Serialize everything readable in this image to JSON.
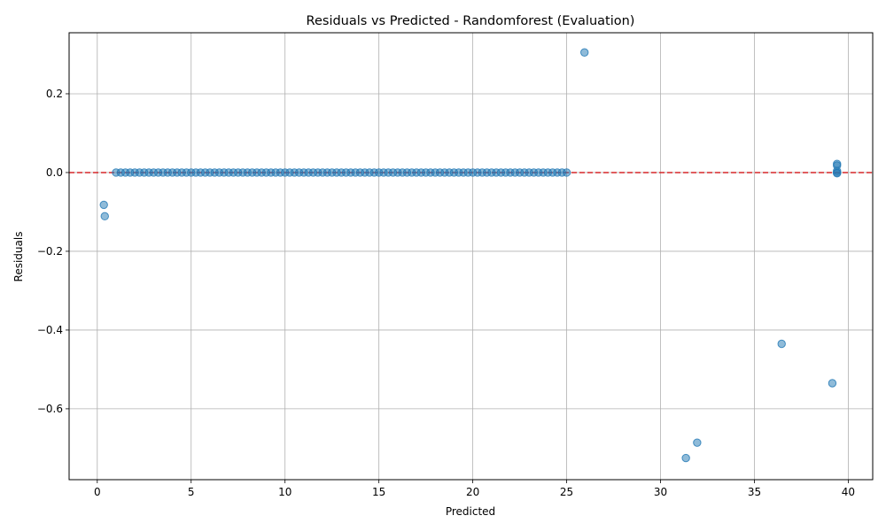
{
  "chart_data": {
    "type": "scatter",
    "title": "Residuals vs Predicted - Randomforest (Evaluation)",
    "xlabel": "Predicted",
    "ylabel": "Residuals",
    "xlim": [
      -1.5,
      41.3
    ],
    "ylim": [
      -0.78,
      0.355
    ],
    "xticks": [
      0,
      5,
      10,
      15,
      20,
      25,
      30,
      35,
      40
    ],
    "yticks": [
      0.2,
      0.0,
      -0.2,
      -0.4,
      -0.6
    ],
    "ytick_labels": [
      "0.2",
      "0.0",
      "−0.2",
      "−0.4",
      "−0.6"
    ],
    "grid": true,
    "reference_line": {
      "y": 0,
      "color": "#d62728",
      "style": "dashed"
    },
    "marker_color": "#1f77b4",
    "marker_alpha": 0.5,
    "dense_band": {
      "x_start": 1.0,
      "x_end": 25.0,
      "step": 0.25,
      "y": 0.0
    },
    "cluster_at_39_4": [
      {
        "x": 39.4,
        "y": 0.022
      },
      {
        "x": 39.4,
        "y": 0.018
      },
      {
        "x": 39.4,
        "y": 0.004
      },
      {
        "x": 39.4,
        "y": 0.0
      },
      {
        "x": 39.4,
        "y": -0.002
      }
    ],
    "points": [
      {
        "x": 0.35,
        "y": -0.082
      },
      {
        "x": 0.4,
        "y": -0.111
      },
      {
        "x": 25.95,
        "y": 0.305
      },
      {
        "x": 31.35,
        "y": -0.725
      },
      {
        "x": 31.95,
        "y": -0.686
      },
      {
        "x": 36.45,
        "y": -0.435
      },
      {
        "x": 39.15,
        "y": -0.535
      }
    ]
  }
}
